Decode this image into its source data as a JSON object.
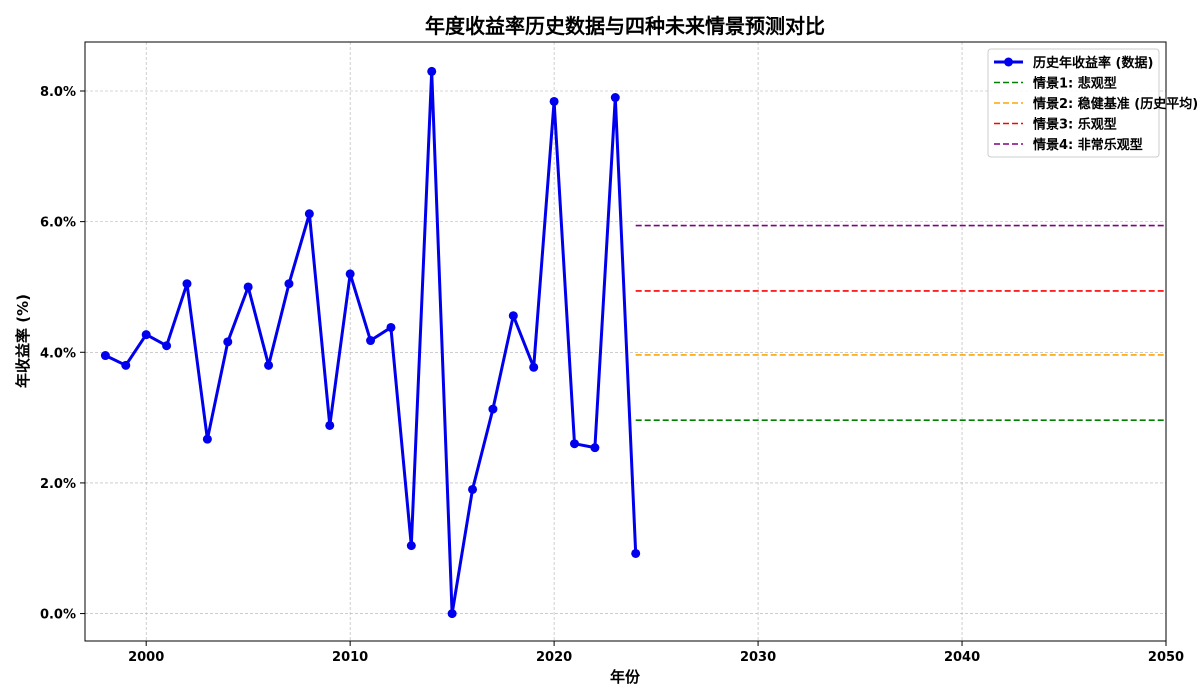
{
  "chart_data": {
    "type": "line",
    "title": "年度收益率历史数据与四种未来情景预测对比",
    "xlabel": "年份",
    "ylabel": "年收益率 (%)",
    "xlim": [
      1997,
      2050
    ],
    "ylim": [
      -0.42,
      8.75
    ],
    "x_ticks": [
      2000,
      2010,
      2020,
      2030,
      2040,
      2050
    ],
    "y_ticks": [
      0,
      2,
      4,
      6,
      8
    ],
    "y_tick_format": "percent-1dp",
    "grid": true,
    "legend_position": "top-right",
    "series": [
      {
        "name": "历史年收益率 (数据)",
        "style": "solid-line-with-markers",
        "color": "#0000ee",
        "x": [
          1998,
          1999,
          2000,
          2001,
          2002,
          2003,
          2004,
          2005,
          2006,
          2007,
          2008,
          2009,
          2010,
          2011,
          2012,
          2013,
          2014,
          2015,
          2016,
          2017,
          2018,
          2019,
          2020,
          2021,
          2022,
          2023,
          2024
        ],
        "y": [
          3.95,
          3.8,
          4.27,
          4.1,
          5.05,
          2.67,
          4.16,
          5.0,
          3.8,
          5.05,
          6.12,
          2.88,
          5.2,
          4.18,
          4.38,
          1.04,
          8.3,
          0.0,
          1.9,
          3.13,
          4.56,
          3.77,
          7.84,
          2.6,
          2.54,
          7.9,
          0.92
        ]
      },
      {
        "name": "情景1: 悲观型",
        "style": "dashed",
        "color": "#008000",
        "x": [
          2024,
          2050
        ],
        "y": [
          2.96,
          2.96
        ]
      },
      {
        "name": "情景2: 稳健基准 (历史平均)",
        "style": "dashed",
        "color": "#ffa500",
        "x": [
          2024,
          2050
        ],
        "y": [
          3.96,
          3.96
        ]
      },
      {
        "name": "情景3: 乐观型",
        "style": "dashed",
        "color": "#ff0000",
        "x": [
          2024,
          2050
        ],
        "y": [
          4.94,
          4.94
        ]
      },
      {
        "name": "情景4: 非常乐观型",
        "style": "dashed",
        "color": "#800080",
        "x": [
          2024,
          2050
        ],
        "y": [
          5.94,
          5.94
        ]
      }
    ]
  }
}
